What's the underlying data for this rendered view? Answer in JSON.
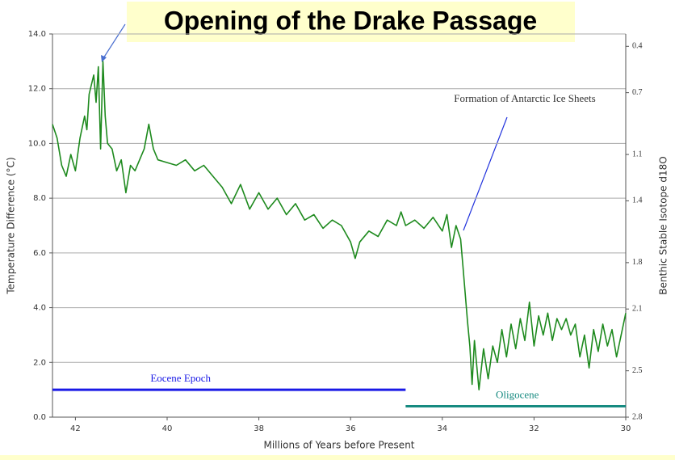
{
  "chart_data": {
    "type": "line",
    "title": "Opening of  the Drake Passage",
    "xlabel": "Millions of Years before Present",
    "ylabel": "Temperature Difference (°C)",
    "y2label": "Benthic Stable Isotope d18O",
    "annotation": "Formation of Antarctic Ice Sheets",
    "xlim": [
      42.5,
      30
    ],
    "xticks": [
      42,
      40,
      38,
      36,
      34,
      32,
      30
    ],
    "ylim": [
      0,
      14
    ],
    "yticks": [
      {
        "value": 0,
        "label": "0.0"
      },
      {
        "value": 2,
        "label": "2.0"
      },
      {
        "value": 4,
        "label": "4.0"
      },
      {
        "value": 6,
        "label": "6.0"
      },
      {
        "value": 8,
        "label": "8.0"
      },
      {
        "value": 10,
        "label": "10.0"
      },
      {
        "value": 12,
        "label": "12.0"
      },
      {
        "value": 14,
        "label": "14.0"
      }
    ],
    "y2lim": [
      2.8,
      0.32
    ],
    "y2ticks": [
      2.8,
      2.5,
      2.1,
      1.8,
      1.4,
      1.1,
      0.7,
      0.4
    ],
    "grid": true,
    "x": [
      42.5,
      42.4,
      42.3,
      42.2,
      42.1,
      42.0,
      41.9,
      41.8,
      41.75,
      41.7,
      41.6,
      41.55,
      41.5,
      41.45,
      41.4,
      41.35,
      41.3,
      41.2,
      41.1,
      41.0,
      40.9,
      40.8,
      40.7,
      40.6,
      40.5,
      40.4,
      40.3,
      40.2,
      40.0,
      39.8,
      39.6,
      39.4,
      39.2,
      39.0,
      38.8,
      38.6,
      38.4,
      38.2,
      38.0,
      37.8,
      37.6,
      37.4,
      37.2,
      37.0,
      36.8,
      36.6,
      36.4,
      36.2,
      36.0,
      35.9,
      35.8,
      35.6,
      35.4,
      35.2,
      35.0,
      34.9,
      34.8,
      34.6,
      34.4,
      34.2,
      34.0,
      33.9,
      33.8,
      33.7,
      33.6,
      33.55,
      33.5,
      33.45,
      33.4,
      33.35,
      33.3,
      33.2,
      33.1,
      33.0,
      32.9,
      32.8,
      32.7,
      32.6,
      32.5,
      32.4,
      32.3,
      32.2,
      32.1,
      32.0,
      31.9,
      31.8,
      31.7,
      31.6,
      31.5,
      31.4,
      31.3,
      31.2,
      31.1,
      31.0,
      30.9,
      30.8,
      30.7,
      30.6,
      30.5,
      30.4,
      30.3,
      30.2,
      30.1,
      30.0
    ],
    "series": [
      {
        "name": "Temperature Difference",
        "color": "#1e8a1e",
        "values": [
          10.7,
          10.2,
          9.2,
          8.8,
          9.6,
          9.0,
          10.2,
          11.0,
          10.5,
          11.8,
          12.5,
          11.5,
          12.8,
          9.8,
          13.0,
          11.0,
          10.0,
          9.8,
          9.0,
          9.4,
          8.2,
          9.2,
          9.0,
          9.4,
          9.8,
          10.7,
          9.8,
          9.4,
          9.3,
          9.2,
          9.4,
          9.0,
          9.2,
          8.8,
          8.4,
          7.8,
          8.5,
          7.6,
          8.2,
          7.6,
          8.0,
          7.4,
          7.8,
          7.2,
          7.4,
          6.9,
          7.2,
          7.0,
          6.4,
          5.8,
          6.4,
          6.8,
          6.6,
          7.2,
          7.0,
          7.5,
          7.0,
          7.2,
          6.9,
          7.3,
          6.8,
          7.4,
          6.2,
          7.0,
          6.5,
          5.5,
          4.5,
          3.5,
          2.6,
          1.2,
          2.8,
          1.0,
          2.5,
          1.4,
          2.6,
          2.0,
          3.2,
          2.2,
          3.4,
          2.5,
          3.6,
          2.8,
          4.2,
          2.6,
          3.7,
          3.0,
          3.8,
          2.8,
          3.6,
          3.2,
          3.6,
          3.0,
          3.4,
          2.2,
          3.0,
          1.8,
          3.2,
          2.4,
          3.4,
          2.6,
          3.2,
          2.2,
          3.0,
          3.8
        ]
      }
    ],
    "periods": [
      {
        "label": "Eocene Epoch",
        "start": 42.5,
        "end": 34.8,
        "value": 1.0,
        "color": "#1a1ae6"
      },
      {
        "label": "Oligocene",
        "start": 34.8,
        "end": 30,
        "value": 0.4,
        "color": "#168a80"
      }
    ]
  }
}
